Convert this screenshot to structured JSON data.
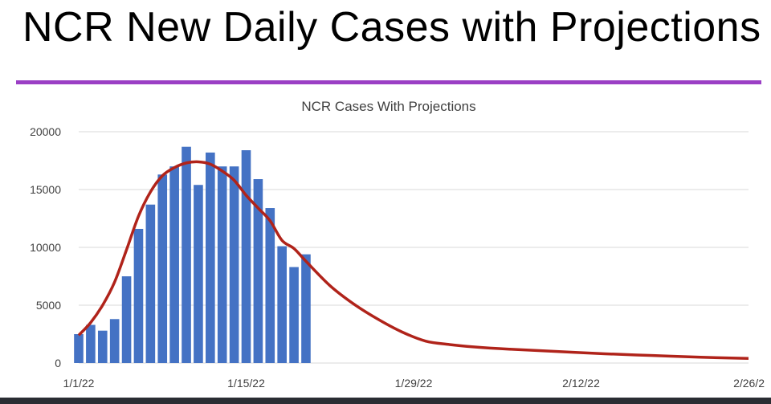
{
  "slide": {
    "title": "NCR New Daily Cases with Projections"
  },
  "colors": {
    "accent": "#9b3fc5",
    "bar": "#4472c4",
    "line": "#b0231a",
    "grid": "#d9d9d9",
    "axis_text": "#404040",
    "bottom_edge": "#2a2d33"
  },
  "chart_data": {
    "type": "bar",
    "title": "NCR Cases With Projections",
    "xlabel": "",
    "ylabel": "",
    "ylim": [
      0,
      20000
    ],
    "yticks": [
      0,
      5000,
      10000,
      15000,
      20000
    ],
    "xlim": [
      "2022-01-01",
      "2022-02-26"
    ],
    "xticks": [
      {
        "date": "2022-01-01",
        "label": "1/1/22"
      },
      {
        "date": "2022-01-15",
        "label": "1/15/22"
      },
      {
        "date": "2022-01-29",
        "label": "1/29/22"
      },
      {
        "date": "2022-02-12",
        "label": "2/12/22"
      },
      {
        "date": "2022-02-26",
        "label": "2/26/2"
      }
    ],
    "grid": true,
    "legend": "none",
    "series": [
      {
        "type": "bar",
        "dates": [
          "2022-01-01",
          "2022-01-02",
          "2022-01-03",
          "2022-01-04",
          "2022-01-05",
          "2022-01-06",
          "2022-01-07",
          "2022-01-08",
          "2022-01-09",
          "2022-01-10",
          "2022-01-11",
          "2022-01-12",
          "2022-01-13",
          "2022-01-14",
          "2022-01-15",
          "2022-01-16",
          "2022-01-17",
          "2022-01-18",
          "2022-01-19",
          "2022-01-20",
          "2022-01-21"
        ],
        "values": [
          2500,
          3300,
          2800,
          3800,
          7500,
          11600,
          13700,
          16300,
          17000,
          18700,
          15400,
          18200,
          17000,
          17000,
          18400,
          15900,
          13400,
          10100,
          8300,
          9400,
          null
        ]
      },
      {
        "type": "line",
        "dates": [
          "2022-01-01",
          "2022-01-02",
          "2022-01-03",
          "2022-01-04",
          "2022-01-05",
          "2022-01-06",
          "2022-01-07",
          "2022-01-08",
          "2022-01-09",
          "2022-01-10",
          "2022-01-11",
          "2022-01-12",
          "2022-01-13",
          "2022-01-14",
          "2022-01-15",
          "2022-01-16",
          "2022-01-17",
          "2022-01-18",
          "2022-01-19",
          "2022-01-20",
          "2022-01-22",
          "2022-01-24",
          "2022-01-26",
          "2022-01-28",
          "2022-01-30",
          "2022-02-01",
          "2022-02-03",
          "2022-02-06",
          "2022-02-10",
          "2022-02-14",
          "2022-02-18",
          "2022-02-22",
          "2022-02-26"
        ],
        "values": [
          2400,
          3500,
          5000,
          7000,
          9800,
          12700,
          14800,
          16200,
          16900,
          17300,
          17400,
          17200,
          16600,
          15800,
          14500,
          13400,
          12300,
          10600,
          9900,
          8800,
          6700,
          5100,
          3800,
          2700,
          1900,
          1600,
          1400,
          1200,
          1000,
          800,
          650,
          500,
          400
        ]
      }
    ]
  }
}
